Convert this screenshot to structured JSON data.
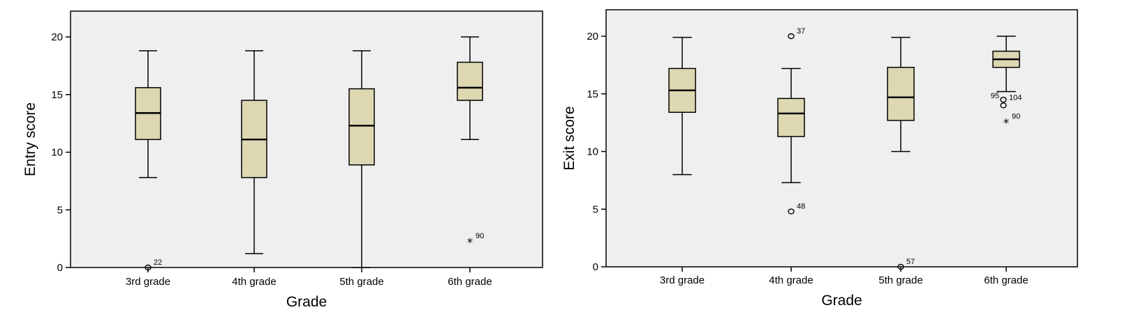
{
  "chart_data": [
    {
      "type": "box",
      "xlabel": "Grade",
      "ylabel": "Entry score",
      "ylim": [
        0,
        22
      ],
      "yticks": [
        0,
        5,
        10,
        15,
        20
      ],
      "grid": false,
      "box_color": "#ddd8b1",
      "background": "#efefef",
      "categories": [
        "3rd grade",
        "4th grade",
        "5th grade",
        "6th grade"
      ],
      "boxes": [
        {
          "min": 7.8,
          "q1": 11.1,
          "median": 13.4,
          "q3": 15.6,
          "max": 18.8,
          "outliers": [
            {
              "value": 0,
              "label": "22",
              "marker": "o"
            }
          ]
        },
        {
          "min": 1.2,
          "q1": 7.8,
          "median": 11.1,
          "q3": 14.5,
          "max": 18.8,
          "outliers": []
        },
        {
          "min": 0,
          "q1": 8.9,
          "median": 12.3,
          "q3": 15.5,
          "max": 18.8,
          "outliers": []
        },
        {
          "min": 11.1,
          "q1": 14.5,
          "median": 15.6,
          "q3": 17.8,
          "max": 20,
          "outliers": [
            {
              "value": 2.3,
              "label": "90",
              "marker": "*"
            }
          ]
        }
      ]
    },
    {
      "type": "box",
      "xlabel": "Grade",
      "ylabel": "Exit score",
      "ylim": [
        0,
        22.2
      ],
      "yticks": [
        0,
        5,
        10,
        15,
        20
      ],
      "grid": false,
      "box_color": "#ddd8b1",
      "background": "#efefef",
      "categories": [
        "3rd grade",
        "4th grade",
        "5th grade",
        "6th grade"
      ],
      "boxes": [
        {
          "min": 8,
          "q1": 13.4,
          "median": 15.3,
          "q3": 17.2,
          "max": 19.9,
          "outliers": []
        },
        {
          "min": 7.3,
          "q1": 11.3,
          "median": 13.3,
          "q3": 14.6,
          "max": 17.2,
          "outliers": [
            {
              "value": 20,
              "label": "37",
              "marker": "o"
            },
            {
              "value": 4.8,
              "label": "48",
              "marker": "o"
            }
          ]
        },
        {
          "min": 10,
          "q1": 12.7,
          "median": 14.7,
          "q3": 17.3,
          "max": 19.9,
          "outliers": [
            {
              "value": 0,
              "label": "57",
              "marker": "o"
            }
          ]
        },
        {
          "min": 15.2,
          "q1": 17.3,
          "median": 18,
          "q3": 18.7,
          "max": 20,
          "outliers": [
            {
              "value": 14.5,
              "label": "95",
              "marker": "o"
            },
            {
              "value": 14.0,
              "label": "104",
              "marker": "o"
            },
            {
              "value": 12.6,
              "label": "90",
              "marker": "*"
            }
          ]
        }
      ]
    }
  ]
}
